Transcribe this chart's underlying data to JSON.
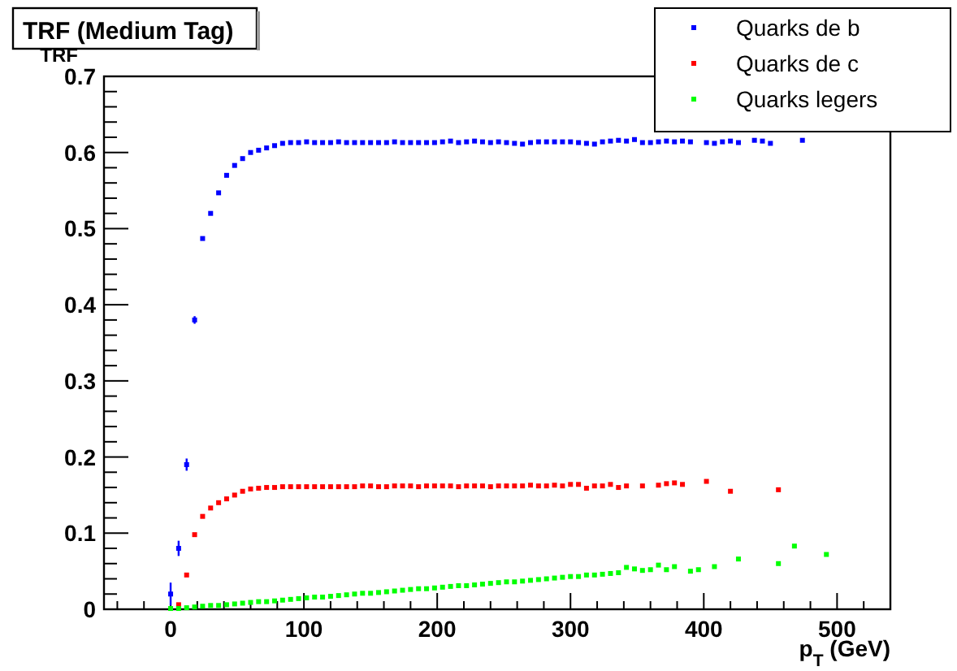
{
  "chart_data": {
    "type": "scatter",
    "title": "TRF (Medium Tag)",
    "ylabel": "TRF",
    "xlabel": "p$_{T}$ (GeV)",
    "xlim": [
      -50,
      540
    ],
    "ylim": [
      0,
      0.7
    ],
    "xticks": [
      {
        "value": -40,
        "label": null
      },
      {
        "value": -20,
        "label": null
      },
      0,
      {
        "value": 20,
        "label": null
      },
      {
        "value": 40,
        "label": null
      },
      {
        "value": 60,
        "label": null
      },
      {
        "value": 80,
        "label": null
      },
      100,
      {
        "value": 120,
        "label": null
      },
      {
        "value": 140,
        "label": null
      },
      {
        "value": 160,
        "label": null
      },
      {
        "value": 180,
        "label": null
      },
      200,
      {
        "value": 220,
        "label": null
      },
      {
        "value": 240,
        "label": null
      },
      {
        "value": 260,
        "label": null
      },
      {
        "value": 280,
        "label": null
      },
      300,
      {
        "value": 320,
        "label": null
      },
      {
        "value": 340,
        "label": null
      },
      {
        "value": 360,
        "label": null
      },
      {
        "value": 380,
        "label": null
      },
      400,
      {
        "value": 420,
        "label": null
      },
      {
        "value": 440,
        "label": null
      },
      {
        "value": 460,
        "label": null
      },
      {
        "value": 480,
        "label": null
      },
      500,
      {
        "value": 520,
        "label": null
      }
    ],
    "yticks": [
      0,
      {
        "value": 0.02,
        "label": null
      },
      {
        "value": 0.04,
        "label": null
      },
      {
        "value": 0.06,
        "label": null
      },
      {
        "value": 0.08,
        "label": null
      },
      0.1,
      {
        "value": 0.12,
        "label": null
      },
      {
        "value": 0.14,
        "label": null
      },
      {
        "value": 0.16,
        "label": null
      },
      {
        "value": 0.18,
        "label": null
      },
      0.2,
      {
        "value": 0.22,
        "label": null
      },
      {
        "value": 0.24,
        "label": null
      },
      {
        "value": 0.26,
        "label": null
      },
      {
        "value": 0.28,
        "label": null
      },
      0.3,
      {
        "value": 0.32,
        "label": null
      },
      {
        "value": 0.34,
        "label": null
      },
      {
        "value": 0.36,
        "label": null
      },
      {
        "value": 0.38,
        "label": null
      },
      0.4,
      {
        "value": 0.42,
        "label": null
      },
      {
        "value": 0.44,
        "label": null
      },
      {
        "value": 0.46,
        "label": null
      },
      {
        "value": 0.48,
        "label": null
      },
      0.5,
      {
        "value": 0.52,
        "label": null
      },
      {
        "value": 0.54,
        "label": null
      },
      {
        "value": 0.56,
        "label": null
      },
      {
        "value": 0.58,
        "label": null
      },
      0.6,
      {
        "value": 0.62,
        "label": null
      },
      {
        "value": 0.64,
        "label": null
      },
      {
        "value": 0.66,
        "label": null
      },
      {
        "value": 0.68,
        "label": null
      },
      0.7
    ],
    "marker": "square",
    "legend": "top right",
    "grid": false,
    "series": [
      {
        "name": "Quarks de b",
        "color": "#0000ff",
        "x": [
          0,
          6,
          12,
          18,
          24,
          30,
          36,
          42,
          48,
          54,
          60,
          66,
          72,
          78,
          84,
          90,
          96,
          102,
          108,
          114,
          120,
          126,
          132,
          138,
          144,
          150,
          156,
          162,
          168,
          174,
          180,
          186,
          192,
          198,
          204,
          210,
          216,
          222,
          228,
          234,
          240,
          246,
          252,
          258,
          264,
          270,
          276,
          282,
          288,
          294,
          300,
          306,
          312,
          318,
          324,
          330,
          336,
          342,
          348,
          354,
          360,
          366,
          372,
          378,
          384,
          390,
          402,
          408,
          414,
          420,
          426,
          438,
          444,
          450,
          474
        ],
        "values": [
          0.02,
          0.08,
          0.19,
          0.38,
          0.487,
          0.52,
          0.547,
          0.57,
          0.583,
          0.592,
          0.6,
          0.603,
          0.606,
          0.609,
          0.612,
          0.613,
          0.613,
          0.614,
          0.613,
          0.613,
          0.613,
          0.614,
          0.613,
          0.613,
          0.613,
          0.613,
          0.613,
          0.613,
          0.614,
          0.613,
          0.613,
          0.613,
          0.613,
          0.613,
          0.614,
          0.615,
          0.613,
          0.614,
          0.615,
          0.614,
          0.613,
          0.614,
          0.613,
          0.612,
          0.611,
          0.613,
          0.614,
          0.614,
          0.614,
          0.614,
          0.614,
          0.613,
          0.612,
          0.611,
          0.614,
          0.615,
          0.616,
          0.615,
          0.617,
          0.613,
          0.613,
          0.614,
          0.615,
          0.614,
          0.615,
          0.614,
          0.613,
          0.612,
          0.614,
          0.615,
          0.613,
          0.616,
          0.615,
          0.612,
          0.616
        ],
        "errors": [
          0.015,
          0.01,
          0.008,
          0.005,
          null,
          null,
          null,
          null,
          null,
          null,
          null,
          null,
          null,
          null,
          null,
          null,
          null,
          null,
          null,
          null,
          null,
          null,
          null,
          null,
          null,
          null,
          null,
          null,
          null,
          null,
          null,
          null,
          null,
          null,
          null,
          null,
          null,
          null,
          null,
          null,
          null,
          null,
          null,
          null,
          null,
          null,
          null,
          null,
          null,
          null,
          null,
          null,
          null,
          null,
          null,
          null,
          null,
          null,
          null,
          null,
          null,
          null,
          null,
          null,
          null,
          null,
          null,
          null,
          null,
          null,
          null,
          null,
          null,
          null,
          null
        ]
      },
      {
        "name": "Quarks de c",
        "color": "#ff0000",
        "x": [
          6,
          12,
          18,
          24,
          30,
          36,
          42,
          48,
          54,
          60,
          66,
          72,
          78,
          84,
          90,
          96,
          102,
          108,
          114,
          120,
          126,
          132,
          138,
          144,
          150,
          156,
          162,
          168,
          174,
          180,
          186,
          192,
          198,
          204,
          210,
          216,
          222,
          228,
          234,
          240,
          246,
          252,
          258,
          264,
          270,
          276,
          282,
          288,
          294,
          300,
          306,
          312,
          318,
          324,
          330,
          336,
          342,
          354,
          366,
          372,
          378,
          384,
          402,
          420,
          456
        ],
        "values": [
          0.006,
          0.045,
          0.098,
          0.122,
          0.133,
          0.14,
          0.145,
          0.15,
          0.155,
          0.158,
          0.159,
          0.16,
          0.16,
          0.161,
          0.161,
          0.161,
          0.161,
          0.161,
          0.161,
          0.161,
          0.161,
          0.161,
          0.161,
          0.162,
          0.162,
          0.161,
          0.161,
          0.162,
          0.162,
          0.162,
          0.161,
          0.162,
          0.162,
          0.162,
          0.162,
          0.161,
          0.162,
          0.162,
          0.162,
          0.161,
          0.162,
          0.162,
          0.162,
          0.162,
          0.163,
          0.162,
          0.162,
          0.163,
          0.162,
          0.164,
          0.164,
          0.159,
          0.162,
          0.162,
          0.164,
          0.16,
          0.162,
          0.162,
          0.163,
          0.165,
          0.166,
          0.164,
          0.168,
          0.155,
          0.157
        ]
      },
      {
        "name": "Quarks legers",
        "color": "#00ff00",
        "x": [
          0,
          6,
          12,
          18,
          24,
          30,
          36,
          42,
          48,
          54,
          60,
          66,
          72,
          78,
          84,
          90,
          96,
          102,
          108,
          114,
          120,
          126,
          132,
          138,
          144,
          150,
          156,
          162,
          168,
          174,
          180,
          186,
          192,
          198,
          204,
          210,
          216,
          222,
          228,
          234,
          240,
          246,
          252,
          258,
          264,
          270,
          276,
          282,
          288,
          294,
          300,
          306,
          312,
          318,
          324,
          330,
          336,
          342,
          348,
          354,
          360,
          366,
          372,
          378,
          390,
          396,
          408,
          426,
          456,
          468,
          492
        ],
        "values": [
          0.001,
          0.001,
          0.002,
          0.003,
          0.004,
          0.005,
          0.005,
          0.006,
          0.007,
          0.008,
          0.009,
          0.01,
          0.01,
          0.011,
          0.012,
          0.013,
          0.014,
          0.015,
          0.016,
          0.016,
          0.017,
          0.018,
          0.019,
          0.02,
          0.021,
          0.021,
          0.022,
          0.023,
          0.024,
          0.025,
          0.026,
          0.027,
          0.027,
          0.028,
          0.029,
          0.03,
          0.031,
          0.031,
          0.032,
          0.033,
          0.034,
          0.035,
          0.036,
          0.036,
          0.037,
          0.038,
          0.039,
          0.04,
          0.041,
          0.042,
          0.043,
          0.043,
          0.045,
          0.045,
          0.046,
          0.047,
          0.048,
          0.055,
          0.053,
          0.051,
          0.052,
          0.058,
          0.052,
          0.056,
          0.05,
          0.052,
          0.056,
          0.066,
          0.06,
          0.083,
          0.072
        ]
      }
    ]
  }
}
